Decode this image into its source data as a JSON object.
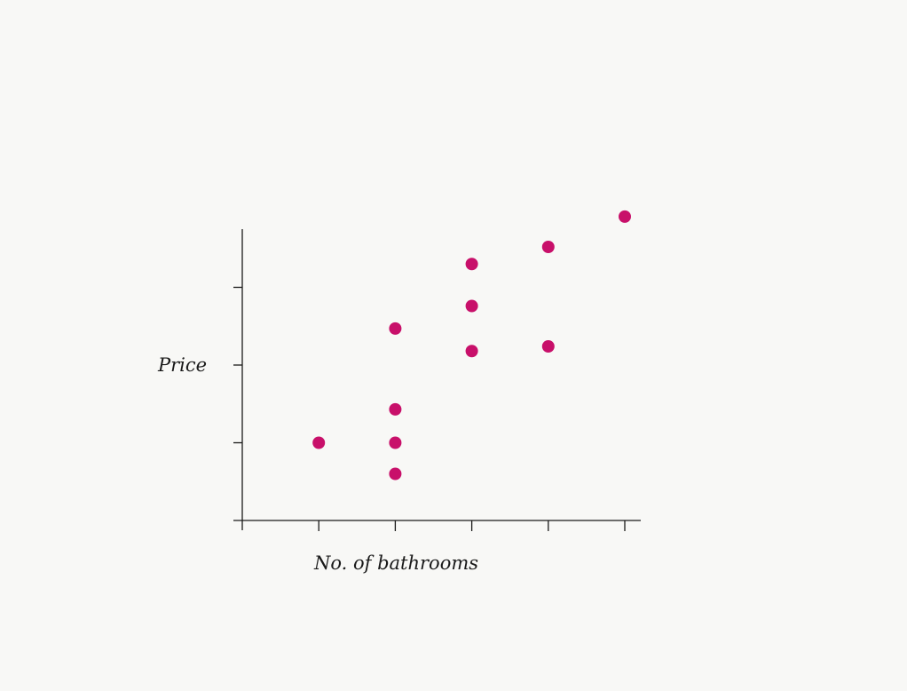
{
  "chart_data": {
    "type": "scatter",
    "title": "",
    "xlabel": "No. of bathrooms",
    "ylabel": "Price",
    "xlim": [
      0,
      5
    ],
    "ylim": [
      0,
      3.75
    ],
    "x_ticks": [
      0,
      1,
      2,
      3,
      4,
      5
    ],
    "y_ticks": [
      0,
      1,
      2,
      3
    ],
    "grid": false,
    "tick_labels_shown": false,
    "marker_color": "#c8106a",
    "axis_color": "#1a1a1a",
    "points": [
      {
        "x": 1,
        "y": 1.0
      },
      {
        "x": 2,
        "y": 0.6
      },
      {
        "x": 2,
        "y": 1.0
      },
      {
        "x": 2,
        "y": 1.43
      },
      {
        "x": 2,
        "y": 2.47
      },
      {
        "x": 3,
        "y": 2.18
      },
      {
        "x": 3,
        "y": 2.76
      },
      {
        "x": 3,
        "y": 3.3
      },
      {
        "x": 4,
        "y": 2.24
      },
      {
        "x": 4,
        "y": 3.52
      },
      {
        "x": 5,
        "y": 3.91
      }
    ]
  }
}
